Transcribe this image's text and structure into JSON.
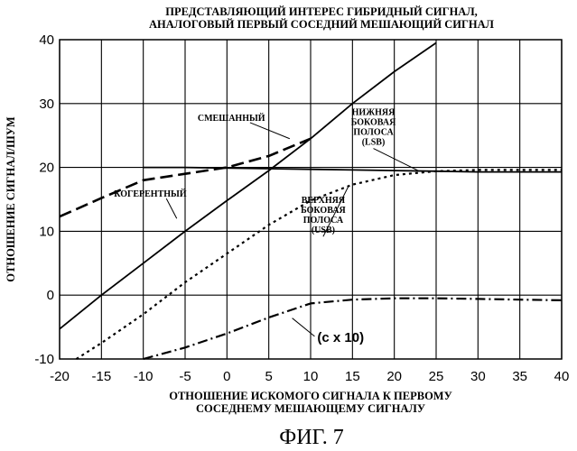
{
  "chart_data": {
    "type": "line",
    "title": "ПРЕДСТАВЛЯЮЩИЙ ИНТЕРЕС ГИБРИДНЫЙ СИГНАЛ, АНАЛОГОВЫЙ ПЕРВЫЙ СОСЕДНИЙ МЕШАЮЩИЙ СИГНАЛ",
    "title_lines": [
      "ПРЕДСТАВЛЯЮЩИЙ ИНТЕРЕС ГИБРИДНЫЙ СИГНАЛ,",
      "АНАЛОГОВЫЙ ПЕРВЫЙ СОСЕДНИЙ МЕШАЮЩИЙ СИГНАЛ"
    ],
    "xlabel": "ОТНОШЕНИЕ ИСКОМОГО СИГНАЛА К ПЕРВОМУ СОСЕДНЕМУ МЕШАЮЩЕМУ СИГНАЛУ",
    "xlabel_lines": [
      "ОТНОШЕНИЕ ИСКОМОГО СИГНАЛА К ПЕРВОМУ",
      "СОСЕДНЕМУ МЕШАЮЩЕМУ СИГНАЛУ"
    ],
    "ylabel": "ОТНОШЕНИЕ СИГНАЛ/ШУМ",
    "xlim": [
      -20,
      40
    ],
    "ylim": [
      -10,
      40
    ],
    "xticks": [
      -20,
      -15,
      -10,
      -5,
      0,
      5,
      10,
      15,
      20,
      25,
      30,
      35,
      40
    ],
    "yticks": [
      -10,
      0,
      10,
      20,
      30,
      40
    ],
    "grid": true,
    "figure_label": "ФИГ. 7",
    "series": [
      {
        "name": "КОГЕРЕНТНЫЙ",
        "style": "solid",
        "x": [
          -20,
          -15,
          -10,
          -5,
          0,
          5,
          10,
          15,
          20,
          25
        ],
        "y": [
          -5.3,
          0,
          5,
          10,
          14.8,
          19.5,
          24.5,
          30,
          35,
          39.5
        ]
      },
      {
        "name": "СМЕШАННЫЙ",
        "style": "dashed",
        "x": [
          -20,
          -15,
          -10,
          -5,
          0,
          5,
          10
        ],
        "y": [
          12.3,
          15.2,
          18,
          19,
          20,
          21.8,
          24.5
        ]
      },
      {
        "name": "НИЖНЯЯ БОКОВАЯ ПОЛОСА (LSB)",
        "style": "solid",
        "x": [
          -10,
          -5,
          0,
          5,
          10,
          15,
          20,
          25,
          30,
          35,
          40
        ],
        "y": [
          20,
          20,
          19.9,
          19.8,
          19.7,
          19.6,
          19.5,
          19.4,
          19.3,
          19.3,
          19.3
        ]
      },
      {
        "name": "ВЕРХНЯЯ БОКОВАЯ ПОЛОСА (USB)",
        "style": "dotted",
        "x": [
          -18,
          -15,
          -10,
          -5,
          0,
          5,
          10,
          15,
          20,
          25,
          30,
          40
        ],
        "y": [
          -10,
          -7.5,
          -3,
          2,
          6.5,
          11,
          14.8,
          17.3,
          18.8,
          19.4,
          19.6,
          19.6
        ]
      },
      {
        "name": "(c x 10)",
        "style": "dash-dot",
        "x": [
          -10,
          -5,
          0,
          5,
          10,
          15,
          20,
          25,
          30,
          35,
          40
        ],
        "y": [
          -10,
          -8.2,
          -6,
          -3.5,
          -1.3,
          -0.7,
          -0.5,
          -0.5,
          -0.6,
          -0.7,
          -0.8
        ]
      }
    ],
    "annotations": [
      {
        "text": "СМЕШАННЫЙ",
        "x": -3.5,
        "y": 27.3,
        "points_to": [
          7.5,
          24.5
        ]
      },
      {
        "text": "КОГЕРЕНТНЫЙ",
        "x": -13.5,
        "y": 15.4,
        "points_to": [
          -6,
          12
        ]
      },
      {
        "lines": [
          "НИЖНЯЯ",
          "БОКОВАЯ",
          "ПОЛОСА",
          "(LSB)"
        ],
        "x": 17.5,
        "y": 28.2,
        "points_to": [
          23,
          19.4
        ]
      },
      {
        "lines": [
          "ВЕРХНЯЯ",
          "БОКОВАЯ",
          "ПОЛОСА",
          "(USB)"
        ],
        "x": 11.5,
        "y": 14.4,
        "points_to": [
          14.5,
          17
        ]
      },
      {
        "text": "(c x 10)",
        "x": 10.8,
        "y": -7.3,
        "points_to": [
          7.8,
          -3.6
        ]
      }
    ]
  }
}
